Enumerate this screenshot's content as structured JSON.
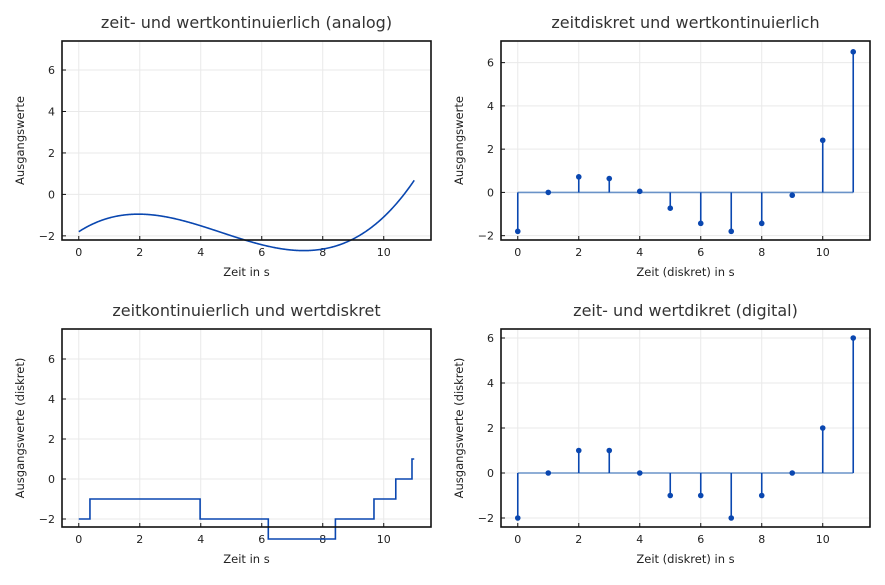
{
  "colors": {
    "signal": "#0a47b0",
    "baseline": "#6a93c8",
    "grid": "#e9e9e9"
  },
  "chart_data": [
    {
      "type": "line",
      "title": "zeit- und wertkontinuierlich (analog)",
      "xlabel": "Zeit in s",
      "ylabel": "Ausgangswerte",
      "function": {
        "kind": "cubic",
        "root": 2,
        "scale": 0.022,
        "offset": -1.8
      },
      "x_range": [
        0,
        11
      ],
      "xlim": [
        -0.55,
        11.55
      ],
      "ylim": [
        -2.2,
        7.4
      ],
      "xticks": [
        0,
        2,
        4,
        6,
        8,
        10
      ],
      "yticks": [
        -2,
        0,
        2,
        4,
        6
      ],
      "grid": true
    },
    {
      "type": "stem",
      "title": "zeitdiskret und wertkontinuierlich",
      "xlabel": "Zeit (diskret) in s",
      "ylabel": "Ausgangswerte",
      "x": [
        0,
        1,
        2,
        3,
        4,
        5,
        6,
        7,
        8,
        9,
        10,
        11
      ],
      "y": [
        -1.8,
        0,
        0.72,
        0.64,
        0.05,
        -0.73,
        -1.43,
        -1.8,
        -1.43,
        -0.13,
        2.41,
        6.5
      ],
      "xlim": [
        -0.55,
        11.55
      ],
      "ylim": [
        -2.2,
        7.0
      ],
      "xticks": [
        0,
        2,
        4,
        6,
        8,
        10
      ],
      "yticks": [
        -2,
        0,
        2,
        4,
        6
      ],
      "grid": true
    },
    {
      "type": "step",
      "title": "zeitkontinuierlich und wertdiskret",
      "xlabel": "Zeit in s",
      "ylabel": "Ausgangswerte (diskret)",
      "function": {
        "kind": "cubic",
        "root": 2,
        "scale": 0.022,
        "offset": -1.8,
        "quantized": true
      },
      "x_range": [
        0,
        11
      ],
      "xlim": [
        -0.55,
        11.55
      ],
      "ylim": [
        -2.4,
        7.5
      ],
      "xticks": [
        0,
        2,
        4,
        6,
        8,
        10
      ],
      "yticks": [
        -2,
        0,
        2,
        4,
        6
      ],
      "grid": true
    },
    {
      "type": "stem",
      "title": "zeit- und wertdikret (digital)",
      "xlabel": "Zeit (diskret) in s",
      "ylabel": "Ausgangswerte (diskret)",
      "x": [
        0,
        1,
        2,
        3,
        4,
        5,
        6,
        7,
        8,
        9,
        10,
        11
      ],
      "y": [
        -2,
        0,
        1,
        1,
        0,
        -1,
        -1,
        -2,
        -1,
        0,
        2,
        6
      ],
      "xlim": [
        -0.55,
        11.55
      ],
      "ylim": [
        -2.4,
        6.4
      ],
      "xticks": [
        0,
        2,
        4,
        6,
        8,
        10
      ],
      "yticks": [
        -2,
        0,
        2,
        4,
        6
      ],
      "grid": true
    }
  ]
}
